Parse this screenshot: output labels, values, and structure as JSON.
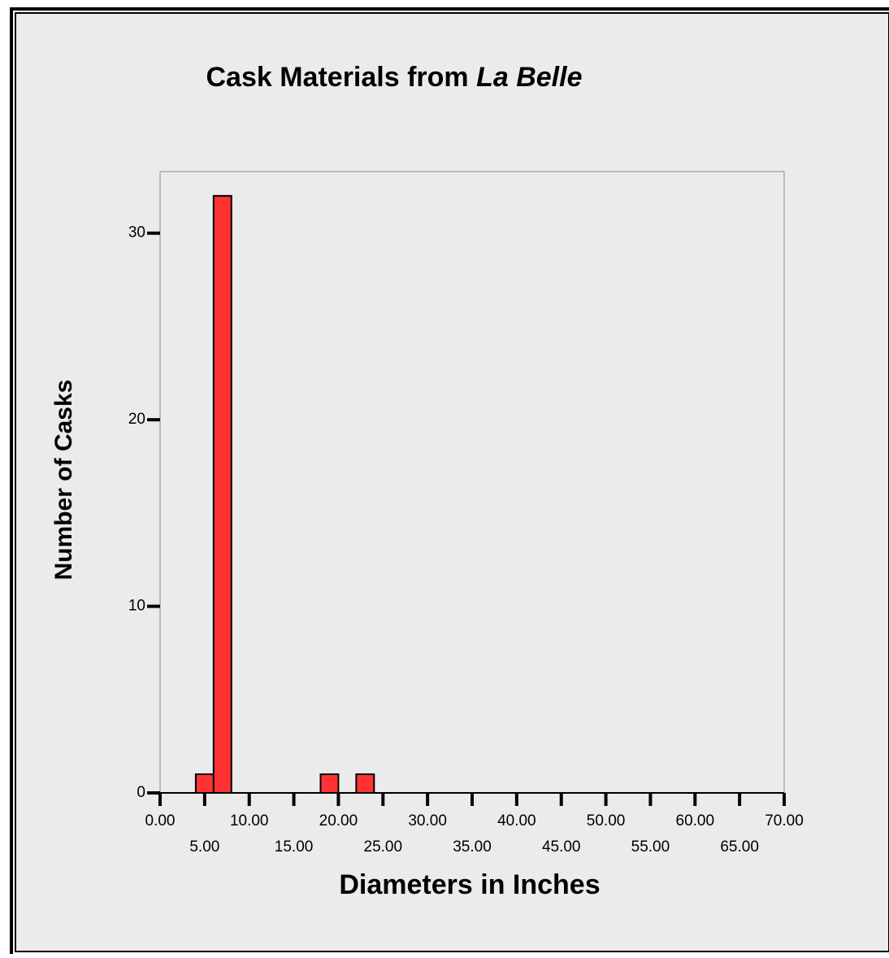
{
  "chart_data": {
    "type": "histogram",
    "title": [
      "Cask Materials from",
      "La Belle"
    ],
    "x_label": "Diameters in Inches",
    "y_label": "Number of Casks",
    "bins": [
      4,
      6,
      8,
      10,
      12,
      14,
      16,
      18,
      20,
      22,
      24
    ],
    "values": [
      1,
      32,
      0,
      0,
      0,
      0,
      0,
      1,
      0,
      1
    ],
    "color": "#ff3333",
    "xlim": [
      0,
      70
    ],
    "xticks": [
      {
        "value": 0,
        "label": "0.00"
      },
      {
        "value": 5,
        "label": "5.00"
      },
      {
        "value": 10,
        "label": "10.00"
      },
      {
        "value": 15,
        "label": "15.00"
      },
      {
        "value": 20,
        "label": "20.00"
      },
      {
        "value": 25,
        "label": "25.00"
      },
      {
        "value": 30,
        "label": "30.00"
      },
      {
        "value": 35,
        "label": "35.00"
      },
      {
        "value": 40,
        "label": "40.00"
      },
      {
        "value": 45,
        "label": "45.00"
      },
      {
        "value": 50,
        "label": "50.00"
      },
      {
        "value": 55,
        "label": "55.00"
      },
      {
        "value": 60,
        "label": "60.00"
      },
      {
        "value": 65,
        "label": "65.00"
      },
      {
        "value": 70,
        "label": "70.00"
      }
    ],
    "ylim": [
      0,
      33.3
    ],
    "yticks": [
      0,
      10,
      20,
      30
    ],
    "grid": false
  }
}
